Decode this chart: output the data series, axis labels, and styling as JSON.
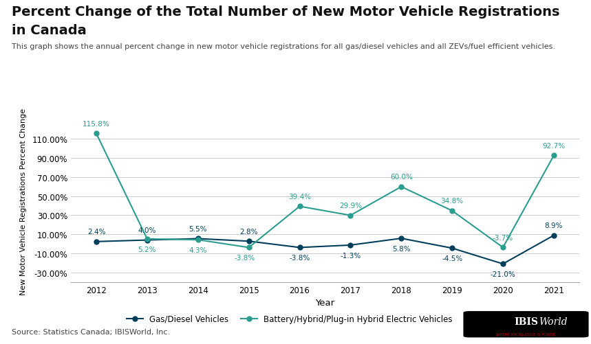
{
  "title_line1": "Percent Change of the Total Number of New Motor Vehicle Registrations",
  "title_line2": "in Canada",
  "subtitle": "This graph shows the annual percent change in new motor vehicle registrations for all gas/diesel vehicles and all ZEVs/fuel efficient vehicles.",
  "xlabel": "Year",
  "ylabel": "New Motor Vehicle Registrations Percent Change",
  "years": [
    2012,
    2013,
    2014,
    2015,
    2016,
    2017,
    2018,
    2019,
    2020,
    2021
  ],
  "gas_diesel": [
    2.4,
    4.0,
    5.5,
    2.8,
    -3.8,
    -1.3,
    5.8,
    -4.5,
    -21.0,
    8.9
  ],
  "gas_diesel_labels": [
    "2.4%",
    "4.0%",
    "5.5%",
    "2.8%",
    "-3.8%",
    "-1.3%",
    "5.8%",
    "-4.5%",
    "-21.0%",
    "8.9%"
  ],
  "zev": [
    115.8,
    5.2,
    4.3,
    -3.8,
    39.4,
    29.9,
    60.0,
    34.8,
    -3.7,
    92.7
  ],
  "zev_labels": [
    "115.8%",
    "5.2%",
    "4.3%",
    "-3.8%",
    "39.4%",
    "29.9%",
    "60.0%",
    "34.8%",
    "-3.7%",
    "92.7%"
  ],
  "gas_color": "#003f5c",
  "zev_color": "#2a9d8f",
  "background_color": "#ffffff",
  "grid_color": "#cccccc",
  "ylim_min": -40,
  "ylim_max": 130,
  "yticks": [
    -30,
    -10,
    10,
    30,
    50,
    70,
    90,
    110
  ],
  "source_text": "Source: Statistics Canada; IBISWorld, Inc.",
  "legend_gas": "Gas/Diesel Vehicles",
  "legend_zev": "Battery/Hybrid/Plug-in Hybrid Electric Vehicles",
  "title_fontsize": 14,
  "subtitle_fontsize": 8,
  "label_fontsize": 7.5,
  "axis_fontsize": 8.5,
  "legend_fontsize": 8.5,
  "source_fontsize": 8,
  "ibis_fontsize": 11
}
